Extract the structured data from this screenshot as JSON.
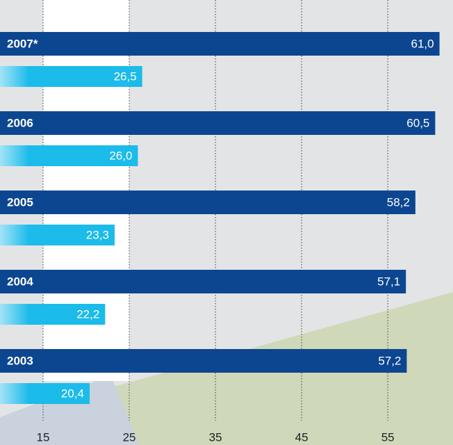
{
  "chart_data": {
    "type": "barh",
    "categories": [
      "2007*",
      "2006",
      "2005",
      "2004",
      "2003"
    ],
    "series": [
      {
        "color": "#0c4690",
        "values": [
          61.0,
          60.5,
          58.2,
          57.1,
          57.2
        ],
        "value_labels": [
          "61,0",
          "60,5",
          "58,2",
          "57,1",
          "57,2"
        ]
      },
      {
        "color": "#1bbbea",
        "values": [
          26.5,
          26.0,
          23.3,
          22.2,
          20.4
        ],
        "value_labels": [
          "26,5",
          "26,0",
          "23,3",
          "22,2",
          "20,4"
        ]
      }
    ],
    "xlim": [
      10,
      62
    ],
    "xticks": [
      15,
      25,
      35,
      45,
      55
    ],
    "grid": true
  }
}
